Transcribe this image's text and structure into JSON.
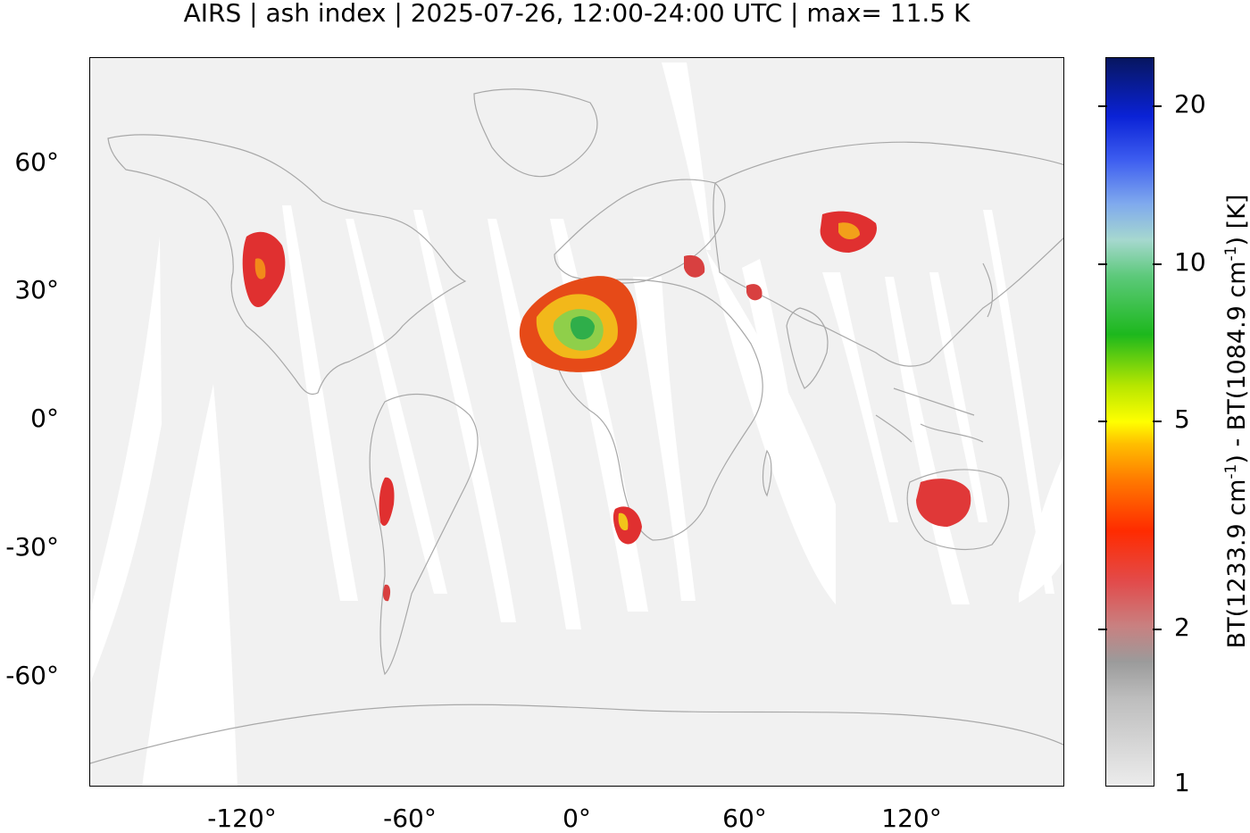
{
  "title": "AIRS | ash index | 2025-07-26, 12:00-24:00 UTC | max= 11.5 K",
  "y_axis": {
    "ticks": [
      "60°",
      "30°",
      "0°",
      "-30°",
      "-60°"
    ]
  },
  "x_axis": {
    "ticks": [
      "-120°",
      "-60°",
      "0°",
      "60°",
      "120°"
    ]
  },
  "colorbar": {
    "ticks": [
      "20",
      "10",
      "5",
      "2",
      "1"
    ],
    "label_prefix": "BT(1233.9 cm",
    "label_sup1": "-1",
    "label_mid": ") - BT(1084.9 cm",
    "label_sup2": "-1",
    "label_suffix": ") [K]"
  },
  "colors": {
    "background_fill": "#f1f1f1",
    "gap": "#ffffff",
    "coastline": "#a8a8a8",
    "low_index": "#e03030",
    "high_index": "#2fae4a"
  }
}
